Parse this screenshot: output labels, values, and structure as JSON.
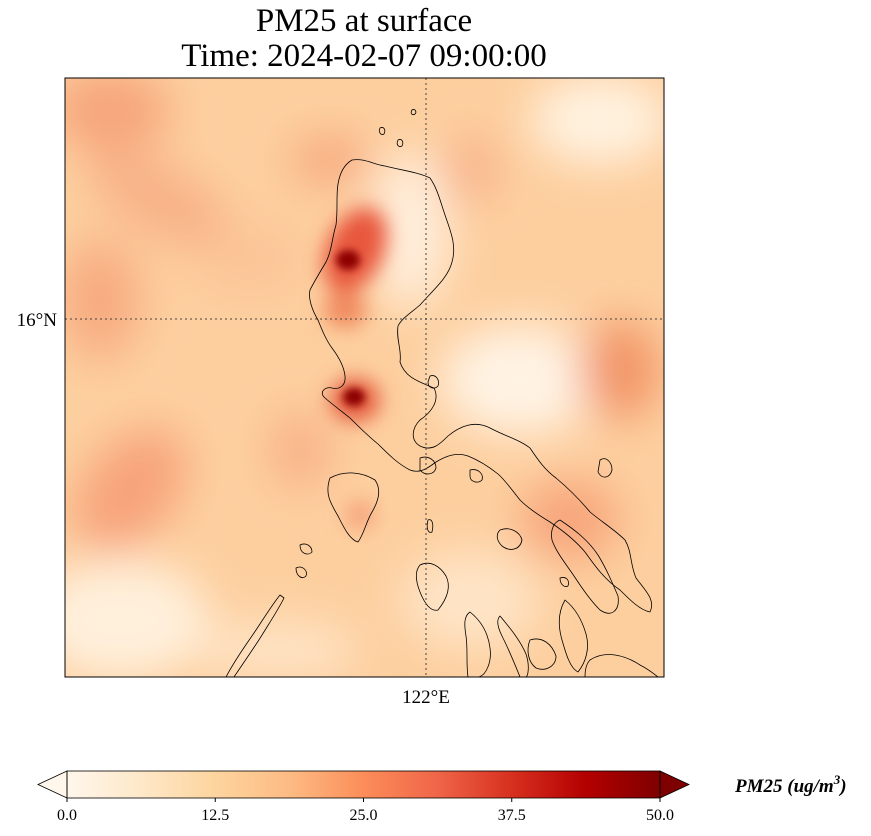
{
  "title_line1": "PM25 at surface",
  "title_line2": "Time: 2024-02-07 09:00:00",
  "axes": {
    "lat_label": "16°N",
    "lon_label": "122°E"
  },
  "colorbar": {
    "title_main": "PM25 (ug/m",
    "title_sup": "3",
    "title_close": ")",
    "ticks": [
      "0.0",
      "12.5",
      "25.0",
      "37.5",
      "50.0"
    ],
    "range": [
      0,
      50
    ],
    "colormap": "OrRd",
    "extend": "both"
  },
  "colors": {
    "low": "#fff7ec",
    "mid_low": "#fdd49e",
    "mid": "#fc8d59",
    "high": "#b30000",
    "max": "#7f0000",
    "coast": "#000000"
  },
  "hotspots": [
    {
      "name": "northwest-luzon-hotspot",
      "value": 50
    },
    {
      "name": "central-luzon-hotspot",
      "value": 48
    }
  ]
}
